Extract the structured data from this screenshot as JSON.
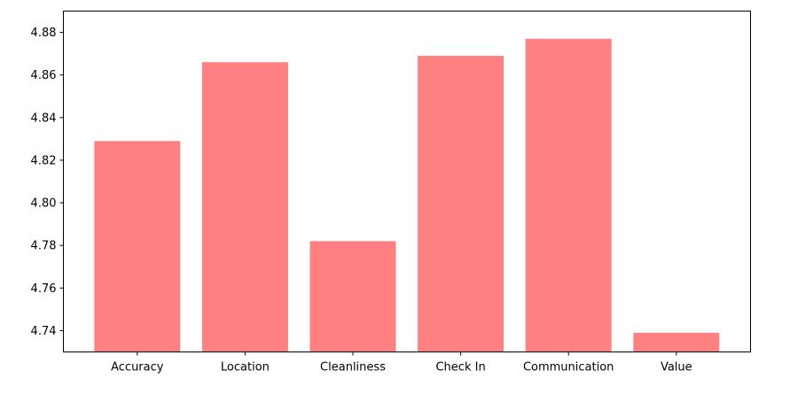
{
  "chart_data": {
    "type": "bar",
    "title": "",
    "xlabel": "",
    "ylabel": "",
    "categories": [
      "Accuracy",
      "Location",
      "Cleanliness",
      "Check In",
      "Communication",
      "Value"
    ],
    "values": [
      4.829,
      4.866,
      4.782,
      4.869,
      4.877,
      4.739
    ],
    "ylim": [
      4.73,
      4.89
    ],
    "yticks": [
      4.74,
      4.76,
      4.78,
      4.8,
      4.82,
      4.84,
      4.86,
      4.88
    ],
    "ytick_labels": [
      "4.74",
      "4.76",
      "4.78",
      "4.80",
      "4.82",
      "4.84",
      "4.86",
      "4.88"
    ],
    "grid": false,
    "legend": "none",
    "bar_color": "#ff8080"
  }
}
